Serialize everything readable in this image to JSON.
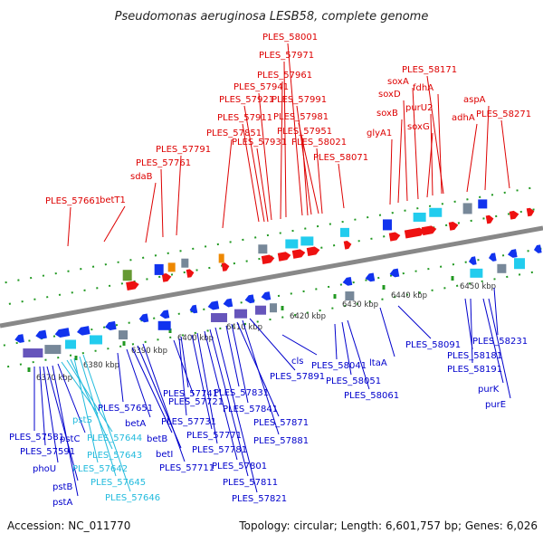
{
  "title": "Pseudomonas aeruginosa LESB58, complete genome",
  "footer": {
    "accession": "Accession: NC_011770",
    "summary": "Topology: circular; Length: 6,601,757 bp; Genes: 6,026"
  },
  "colors": {
    "upper_label": "#dd0000",
    "lower_label": "#0000cc",
    "cyan_label": "#22bbdd",
    "axis": "#888888",
    "tick": "#229922"
  },
  "kbp_ticks": [
    "6370 kbp",
    "6380 kbp",
    "6390 kbp",
    "6400 kbp",
    "6410 kbp",
    "6420 kbp",
    "6430 kbp",
    "6440 kbp",
    "6450 kbp"
  ],
  "upper_labels": [
    "PLES_57661",
    "betT1",
    "sdaB",
    "PLES_57761",
    "PLES_57791",
    "PLES_57851",
    "PLES_57911",
    "PLES_57931",
    "PLES_57921",
    "PLES_57941",
    "PLES_57961",
    "PLES_57971",
    "PLES_58001",
    "PLES_57991",
    "PLES_57981",
    "PLES_57951",
    "PLES_58021",
    "PLES_58071",
    "glyA1",
    "soxB",
    "soxD",
    "soxA",
    "soxG",
    "purU2",
    "fdhA",
    "PLES_58171",
    "adhA",
    "aspA",
    "PLES_58271"
  ],
  "lower_labels": [
    "PLES_57581",
    "PLES_57591",
    "phoU",
    "pstB",
    "pstA",
    "pstC",
    "pstS",
    "PLES_57644",
    "PLES_57643",
    "PLES_57642",
    "PLES_57645",
    "PLES_57646",
    "PLES_57651",
    "betA",
    "betB",
    "betI",
    "PLES_57711",
    "PLES_57721",
    "PLES_57731",
    "PLES_57741",
    "PLES_57771",
    "PLES_57781",
    "PLES_57801",
    "PLES_57811",
    "PLES_57821",
    "PLES_57831",
    "PLES_57841",
    "PLES_57871",
    "PLES_57881",
    "PLES_57891",
    "cls",
    "PLES_58041",
    "PLES_58051",
    "PLES_58061",
    "ltaA",
    "PLES_58091",
    "PLES_58181",
    "PLES_58191",
    "PLES_58231",
    "purK",
    "purE"
  ]
}
